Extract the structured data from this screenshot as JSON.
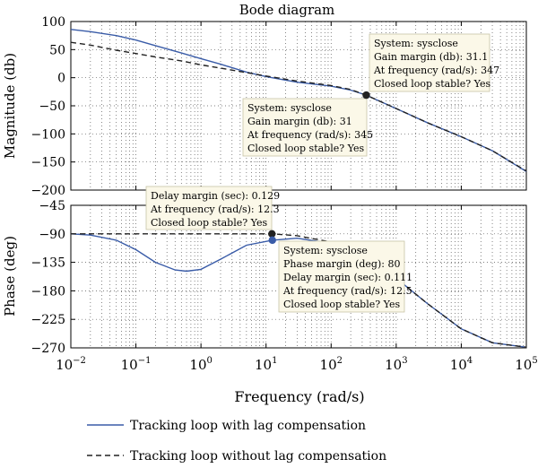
{
  "chart_data": {
    "type": "line",
    "title": "Bode diagram",
    "xlabel": "Frequency (rad/s)",
    "x_scale": "log",
    "x_ticks": [
      {
        "value": 0.01,
        "base": "10",
        "exp": "−2"
      },
      {
        "value": 0.1,
        "base": "10",
        "exp": "−1"
      },
      {
        "value": 1,
        "base": "10",
        "exp": "0"
      },
      {
        "value": 10,
        "base": "10",
        "exp": "1"
      },
      {
        "value": 100,
        "base": "10",
        "exp": "2"
      },
      {
        "value": 1000,
        "base": "10",
        "exp": "3"
      },
      {
        "value": 10000,
        "base": "10",
        "exp": "4"
      },
      {
        "value": 100000,
        "base": "10",
        "exp": "5"
      }
    ],
    "grid": true,
    "legend_position": "bottom",
    "colors": {
      "series1": "#3a5ca8",
      "series2": "#222222",
      "marker_blue": "#3a5ca8",
      "marker_black": "#222222"
    },
    "magnitude": {
      "ylabel": "Magnitude (db)",
      "ylim": [
        -200,
        100
      ],
      "yticks": [
        "100",
        "50",
        "0",
        "−50",
        "−100",
        "−150",
        "−200"
      ],
      "ytick_values": [
        100,
        50,
        0,
        -50,
        -100,
        -150,
        -200
      ],
      "series": [
        {
          "name": "Tracking loop with lag compensation",
          "style": "solid",
          "points": [
            [
              0.01,
              86
            ],
            [
              0.02,
              82
            ],
            [
              0.05,
              75
            ],
            [
              0.1,
              67
            ],
            [
              0.2,
              57
            ],
            [
              0.5,
              44
            ],
            [
              1,
              34
            ],
            [
              2,
              24
            ],
            [
              5,
              10
            ],
            [
              10,
              2
            ],
            [
              30,
              -8
            ],
            [
              100,
              -15
            ],
            [
              200,
              -22
            ],
            [
              347,
              -31
            ],
            [
              1000,
              -55
            ],
            [
              3000,
              -80
            ],
            [
              10000,
              -105
            ],
            [
              30000,
              -130
            ],
            [
              100000,
              -167
            ]
          ]
        },
        {
          "name": "Tracking loop without lag compensation",
          "style": "dashed",
          "points": [
            [
              0.01,
              63
            ],
            [
              0.02,
              58
            ],
            [
              0.05,
              49
            ],
            [
              0.1,
              43
            ],
            [
              0.2,
              37
            ],
            [
              0.5,
              30
            ],
            [
              1,
              23
            ],
            [
              2,
              17
            ],
            [
              5,
              9
            ],
            [
              10,
              3
            ],
            [
              30,
              -6
            ],
            [
              100,
              -14
            ],
            [
              200,
              -21
            ],
            [
              345,
              -31
            ],
            [
              1000,
              -55
            ],
            [
              3000,
              -80
            ],
            [
              10000,
              -105
            ],
            [
              30000,
              -130
            ],
            [
              100000,
              -166
            ]
          ]
        }
      ],
      "markers": [
        {
          "x": 347,
          "y": -31,
          "color": "#222222"
        }
      ],
      "annotations": [
        {
          "lines": [
            "System: sysclose",
            "Gain margin (db): 31.1",
            "At frequency (rad/s): 347",
            "Closed loop stable? Yes"
          ],
          "anchor_x": 347,
          "anchor_y": -31
        },
        {
          "lines": [
            "System: sysclose",
            "Gain margin (db): 31",
            "At frequency (rad/s): 345",
            "Closed loop stable? Yes"
          ],
          "anchor_x": 345,
          "anchor_y": -31
        }
      ]
    },
    "phase": {
      "ylabel": "Phase (deg)",
      "ylim": [
        -270,
        -45
      ],
      "yticks": [
        "−45",
        "−90",
        "−135",
        "−180",
        "−225",
        "−270"
      ],
      "ytick_values": [
        -45,
        -90,
        -135,
        -180,
        -225,
        -270
      ],
      "series": [
        {
          "name": "Tracking loop with lag compensation",
          "style": "solid",
          "points": [
            [
              0.01,
              -90
            ],
            [
              0.02,
              -92
            ],
            [
              0.05,
              -100
            ],
            [
              0.1,
              -115
            ],
            [
              0.2,
              -135
            ],
            [
              0.4,
              -147
            ],
            [
              0.6,
              -149
            ],
            [
              1,
              -146
            ],
            [
              2,
              -130
            ],
            [
              5,
              -108
            ],
            [
              12.5,
              -100
            ],
            [
              30,
              -97
            ],
            [
              100,
              -105
            ],
            [
              300,
              -125
            ],
            [
              1000,
              -160
            ],
            [
              3000,
              -200
            ],
            [
              10000,
              -240
            ],
            [
              30000,
              -262
            ],
            [
              100000,
              -269
            ]
          ]
        },
        {
          "name": "Tracking loop without lag compensation",
          "style": "dashed",
          "points": [
            [
              0.01,
              -90
            ],
            [
              0.1,
              -90
            ],
            [
              1,
              -90
            ],
            [
              5,
              -90
            ],
            [
              12.3,
              -90
            ],
            [
              30,
              -93
            ],
            [
              100,
              -103
            ],
            [
              300,
              -125
            ],
            [
              1000,
              -160
            ],
            [
              3000,
              -200
            ],
            [
              10000,
              -240
            ],
            [
              30000,
              -262
            ],
            [
              100000,
              -269
            ]
          ]
        }
      ],
      "markers": [
        {
          "x": 12.3,
          "y": -90,
          "color": "#222222"
        },
        {
          "x": 12.5,
          "y": -100,
          "color": "#3a5ca8"
        }
      ],
      "annotations": [
        {
          "lines": [
            "Delay margin (sec): 0.129",
            "At frequency (rad/s): 12.3",
            "Closed loop stable? Yes"
          ],
          "anchor_x": 12.3,
          "anchor_y": -90
        },
        {
          "lines": [
            "System: sysclose",
            "Phase margin (deg): 80",
            "Delay margin (sec): 0.111",
            "At frequency (rad/s): 12.5",
            "Closed loop stable? Yes"
          ],
          "anchor_x": 12.5,
          "anchor_y": -100
        }
      ]
    }
  }
}
